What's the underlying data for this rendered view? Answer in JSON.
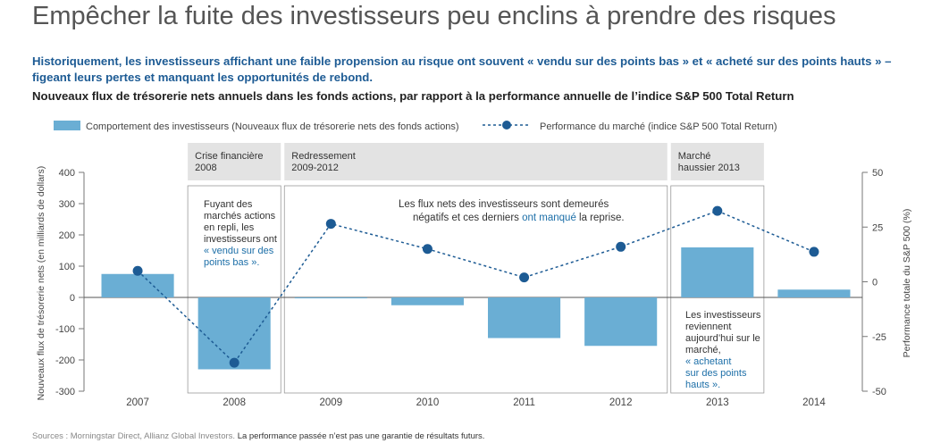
{
  "title": "Empêcher la fuite des investisseurs peu enclins à prendre des risques",
  "intro": "Historiquement, les investisseurs affichant une faible propension au risque ont souvent « vendu sur des points bas » et « acheté sur des points hauts » – figeant leurs pertes et manquant les opportunités de rebond.",
  "subtitle": "Nouveaux flux de trésorerie nets annuels dans les fonds actions, par rapport à la performance annuelle de l’indice S&P 500 Total Return",
  "source": {
    "prefix": "Sources : Morningstar Direct, Allianz Global Investors.",
    "disclaimer": "La performance passée n’est pas une garantie de résultats futurs."
  },
  "colors": {
    "bar": "#6aaed4",
    "line": "#1d5b94",
    "header_bg": "#e3e3e3",
    "accent_text": "#1d6fa8"
  },
  "chart_data": {
    "type": "bar+line",
    "categories": [
      "2007",
      "2008",
      "2009",
      "2010",
      "2011",
      "2012",
      "2013",
      "2014"
    ],
    "series": [
      {
        "name": "Comportement des investisseurs (Nouveaux flux de trésorerie nets des fonds actions)",
        "type": "bar",
        "axis": "left",
        "values": [
          75,
          -230,
          -3,
          -25,
          -130,
          -155,
          160,
          25
        ]
      },
      {
        "name": "Performance du marché (indice S&P 500 Total Return)",
        "type": "line",
        "axis": "right",
        "values": [
          5,
          -37,
          26.5,
          15,
          2,
          16,
          32.4,
          13.7
        ]
      }
    ],
    "left_axis": {
      "label": "Nouveaux flux de trésorerie nets (en milliards de dollars)",
      "min": -300,
      "max": 400,
      "ticks": [
        "400",
        "300",
        "200",
        "100",
        "0",
        "-100",
        "-200",
        "-300"
      ],
      "tick_values": [
        400,
        300,
        200,
        100,
        0,
        -100,
        -200,
        -300
      ]
    },
    "right_axis": {
      "label": "Performance totale du S&P 500 (%)",
      "min": -50,
      "max": 50,
      "ticks": [
        "50",
        "25",
        "0",
        "-25",
        "-50"
      ],
      "tick_values": [
        50,
        25,
        0,
        -25,
        -50
      ]
    },
    "regions": [
      {
        "header": [
          "Crise financière",
          "2008"
        ],
        "from": 1,
        "to": 1
      },
      {
        "header": [
          "Redressement",
          "2009-2012"
        ],
        "from": 2,
        "to": 5
      },
      {
        "header": [
          "Marché",
          "haussier 2013"
        ],
        "from": 6,
        "to": 6
      }
    ],
    "annotations": {
      "crise": {
        "lines": [
          "Fuyant des",
          "marchés actions",
          "en repli, les",
          "investisseurs ont"
        ],
        "highlight": [
          "« vendu sur des",
          "points bas »."
        ]
      },
      "redressement": {
        "line1": "Les flux nets des investisseurs sont demeurés",
        "line2_before": "négatifs et ces derniers ",
        "line2_highlight": "ont manqué",
        "line2_after": " la reprise."
      },
      "haussier": {
        "lines": [
          "Les investisseurs",
          "reviennent",
          "aujourd’hui sur le",
          "marché,"
        ],
        "highlight": [
          "« achetant",
          "sur des points",
          "hauts »."
        ]
      }
    }
  }
}
